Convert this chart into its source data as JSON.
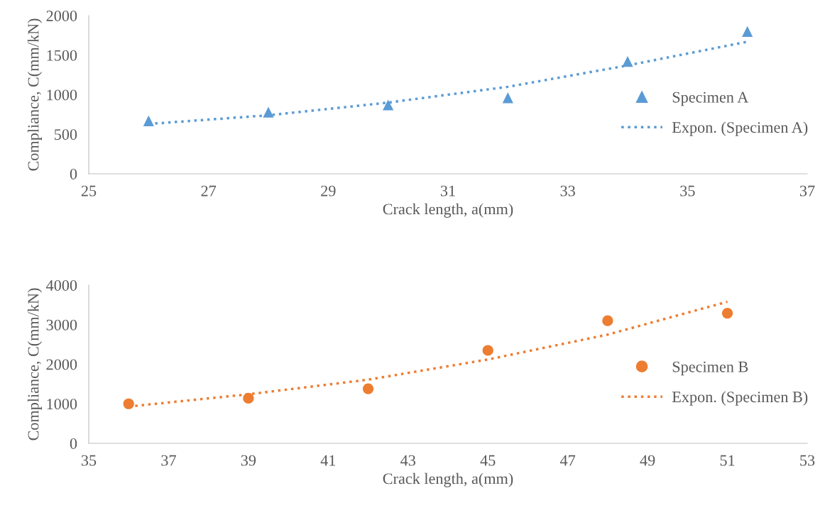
{
  "chart_data": [
    {
      "type": "scatter",
      "xlabel": "Crack length, a(mm)",
      "ylabel": "Compliance, C(mm/kN)",
      "xlim": [
        25,
        37
      ],
      "xticks": [
        25,
        27,
        29,
        31,
        33,
        35,
        37
      ],
      "ylim": [
        0,
        2000
      ],
      "yticks": [
        0,
        500,
        1000,
        1500,
        2000
      ],
      "grid": false,
      "legend": "right",
      "series": [
        {
          "name": "Specimen A",
          "marker": "triangle",
          "color": "#5b9bd5",
          "x": [
            26,
            28,
            30,
            32,
            34,
            36
          ],
          "values": [
            670,
            780,
            870,
            960,
            1420,
            1800
          ]
        },
        {
          "name": "Expon. (Specimen A)",
          "type": "line",
          "marker": "none",
          "line_style": "dotted",
          "color": "#5b9bd5",
          "x": [
            26,
            28,
            30,
            32,
            34,
            36
          ],
          "values": [
            630,
            740,
            900,
            1100,
            1370,
            1670
          ]
        }
      ]
    },
    {
      "type": "scatter",
      "xlabel": "Crack length, a(mm)",
      "ylabel": "Compliance, C(mm/kN)",
      "xlim": [
        35,
        53
      ],
      "xticks": [
        35,
        37,
        39,
        41,
        43,
        45,
        47,
        49,
        51,
        53
      ],
      "ylim": [
        0,
        4000
      ],
      "yticks": [
        0,
        1000,
        2000,
        3000,
        4000
      ],
      "grid": false,
      "legend": "right",
      "series": [
        {
          "name": "Specimen B",
          "marker": "circle",
          "color": "#ed7d31",
          "x": [
            36,
            39,
            42,
            45,
            48,
            51
          ],
          "values": [
            1000,
            1140,
            1380,
            2350,
            3100,
            3290
          ]
        },
        {
          "name": "Expon. (Specimen B)",
          "type": "line",
          "marker": "none",
          "line_style": "dotted",
          "color": "#ed7d31",
          "x": [
            36,
            39,
            42,
            45,
            48,
            51
          ],
          "values": [
            930,
            1240,
            1610,
            2120,
            2750,
            3580
          ]
        }
      ]
    }
  ]
}
